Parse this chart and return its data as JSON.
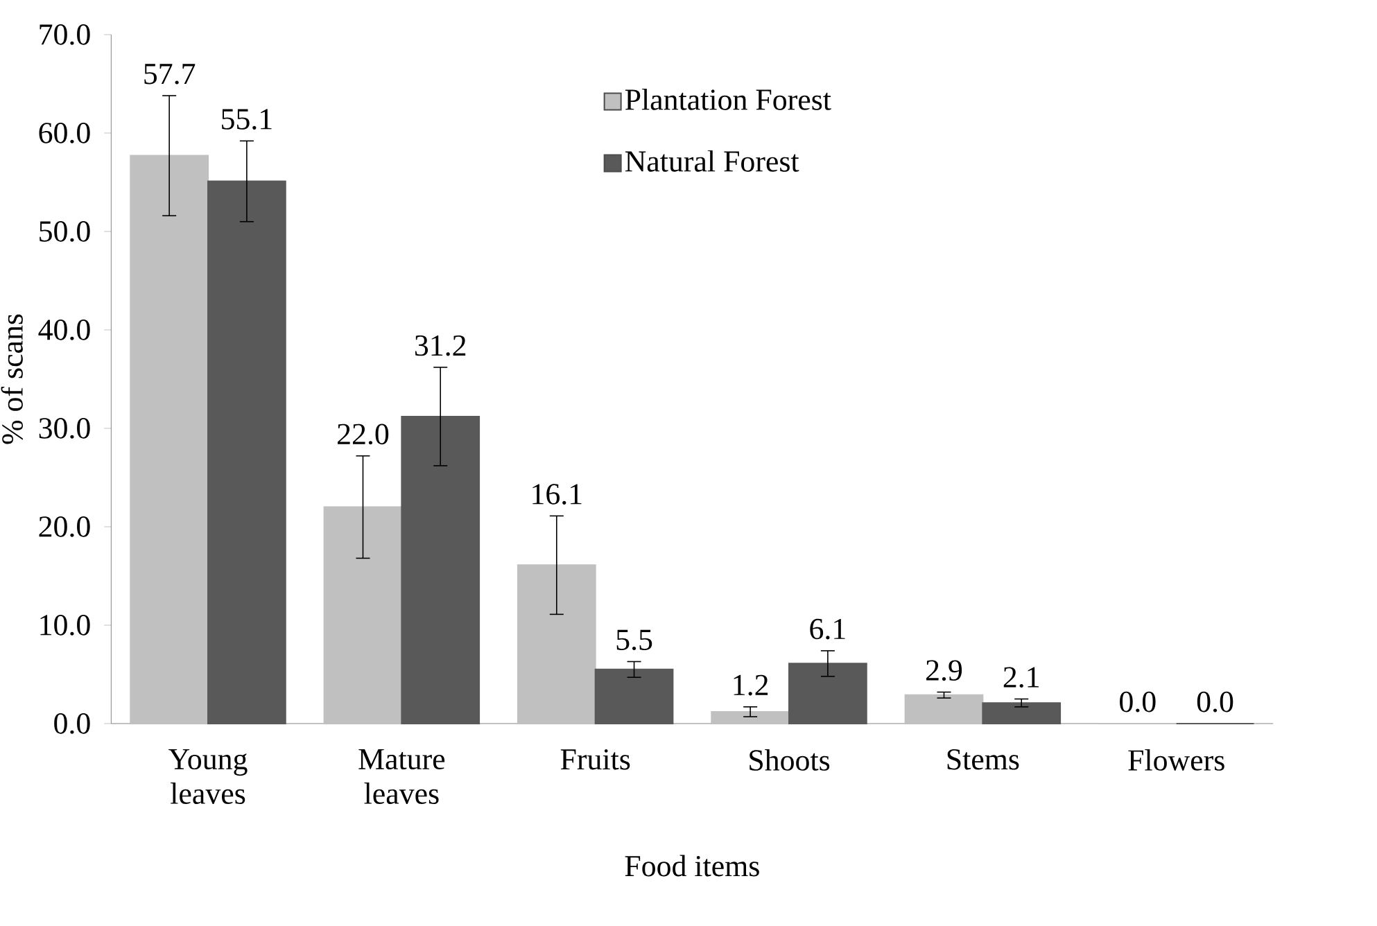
{
  "chart_data": {
    "type": "bar",
    "xlabel": "Food items",
    "ylabel": "% of scans",
    "categories": [
      "Young leaves",
      "Mature leaves",
      "Fruits",
      "Shoots",
      "Stems",
      "Flowers"
    ],
    "series": [
      {
        "name": "Plantation Forest",
        "color": "#c0c0c0",
        "values": [
          57.7,
          22.0,
          16.1,
          1.2,
          2.9,
          0.0
        ],
        "value_labels": [
          "57.7",
          "22.0",
          "16.1",
          "1.2",
          "2.9",
          "0.0"
        ],
        "errors": [
          6.1,
          5.2,
          5.0,
          0.5,
          0.3,
          null
        ]
      },
      {
        "name": "Natural Forest",
        "color": "#595959",
        "values": [
          55.1,
          31.2,
          5.5,
          6.1,
          2.1,
          0.0
        ],
        "value_labels": [
          "55.1",
          "31.2",
          "5.5",
          "6.1",
          "2.1",
          "0.0"
        ],
        "errors": [
          4.1,
          5.0,
          0.8,
          1.3,
          0.4,
          null
        ]
      }
    ],
    "ylim": [
      0,
      70
    ],
    "yticks": [
      {
        "value": 0,
        "label": "0.0"
      },
      {
        "value": 10,
        "label": "10.0"
      },
      {
        "value": 20,
        "label": "20.0"
      },
      {
        "value": 30,
        "label": "30.0"
      },
      {
        "value": 40,
        "label": "40.0"
      },
      {
        "value": 50,
        "label": "50.0"
      },
      {
        "value": 60,
        "label": "60.0"
      },
      {
        "value": 70,
        "label": "70.0"
      }
    ],
    "legend": "top",
    "grid": false
  }
}
